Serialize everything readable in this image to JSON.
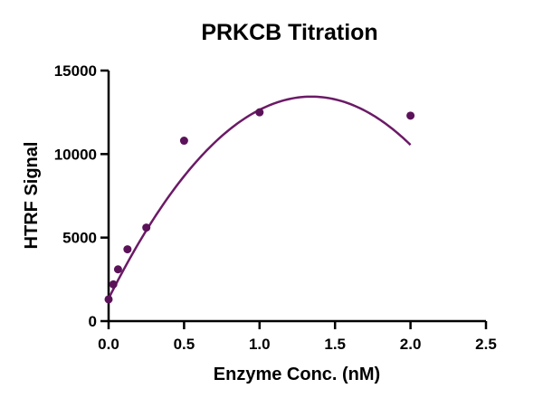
{
  "chart_data": {
    "type": "scatter",
    "title": "PRKCB Titration",
    "xlabel": "Enzyme Conc. (nM)",
    "ylabel": "HTRF Signal",
    "xlim": [
      0,
      2.5
    ],
    "ylim": [
      0,
      15000
    ],
    "xticks": [
      0.0,
      0.5,
      1.0,
      1.5,
      2.0,
      2.5
    ],
    "xtick_labels": [
      "0.0",
      "0.5",
      "1.0",
      "1.5",
      "2.0",
      "2.5"
    ],
    "yticks": [
      0,
      5000,
      10000,
      15000
    ],
    "ytick_labels": [
      "0",
      "5000",
      "10000",
      "15000"
    ],
    "grid": false,
    "legend": "none",
    "series": [
      {
        "x": [
          0,
          0.03125,
          0.0625,
          0.125,
          0.25,
          0.5,
          1.0,
          2.0
        ],
        "y": [
          1300,
          2200,
          3100,
          4300,
          5600,
          10800,
          12500,
          12300
        ],
        "color": "#5b1259"
      }
    ],
    "fit_curve": {
      "model": "quadratic",
      "coefficients": [
        1350,
        18000,
        -6700
      ],
      "x_range": [
        0,
        2.0
      ],
      "color": "#6b1a66"
    }
  }
}
